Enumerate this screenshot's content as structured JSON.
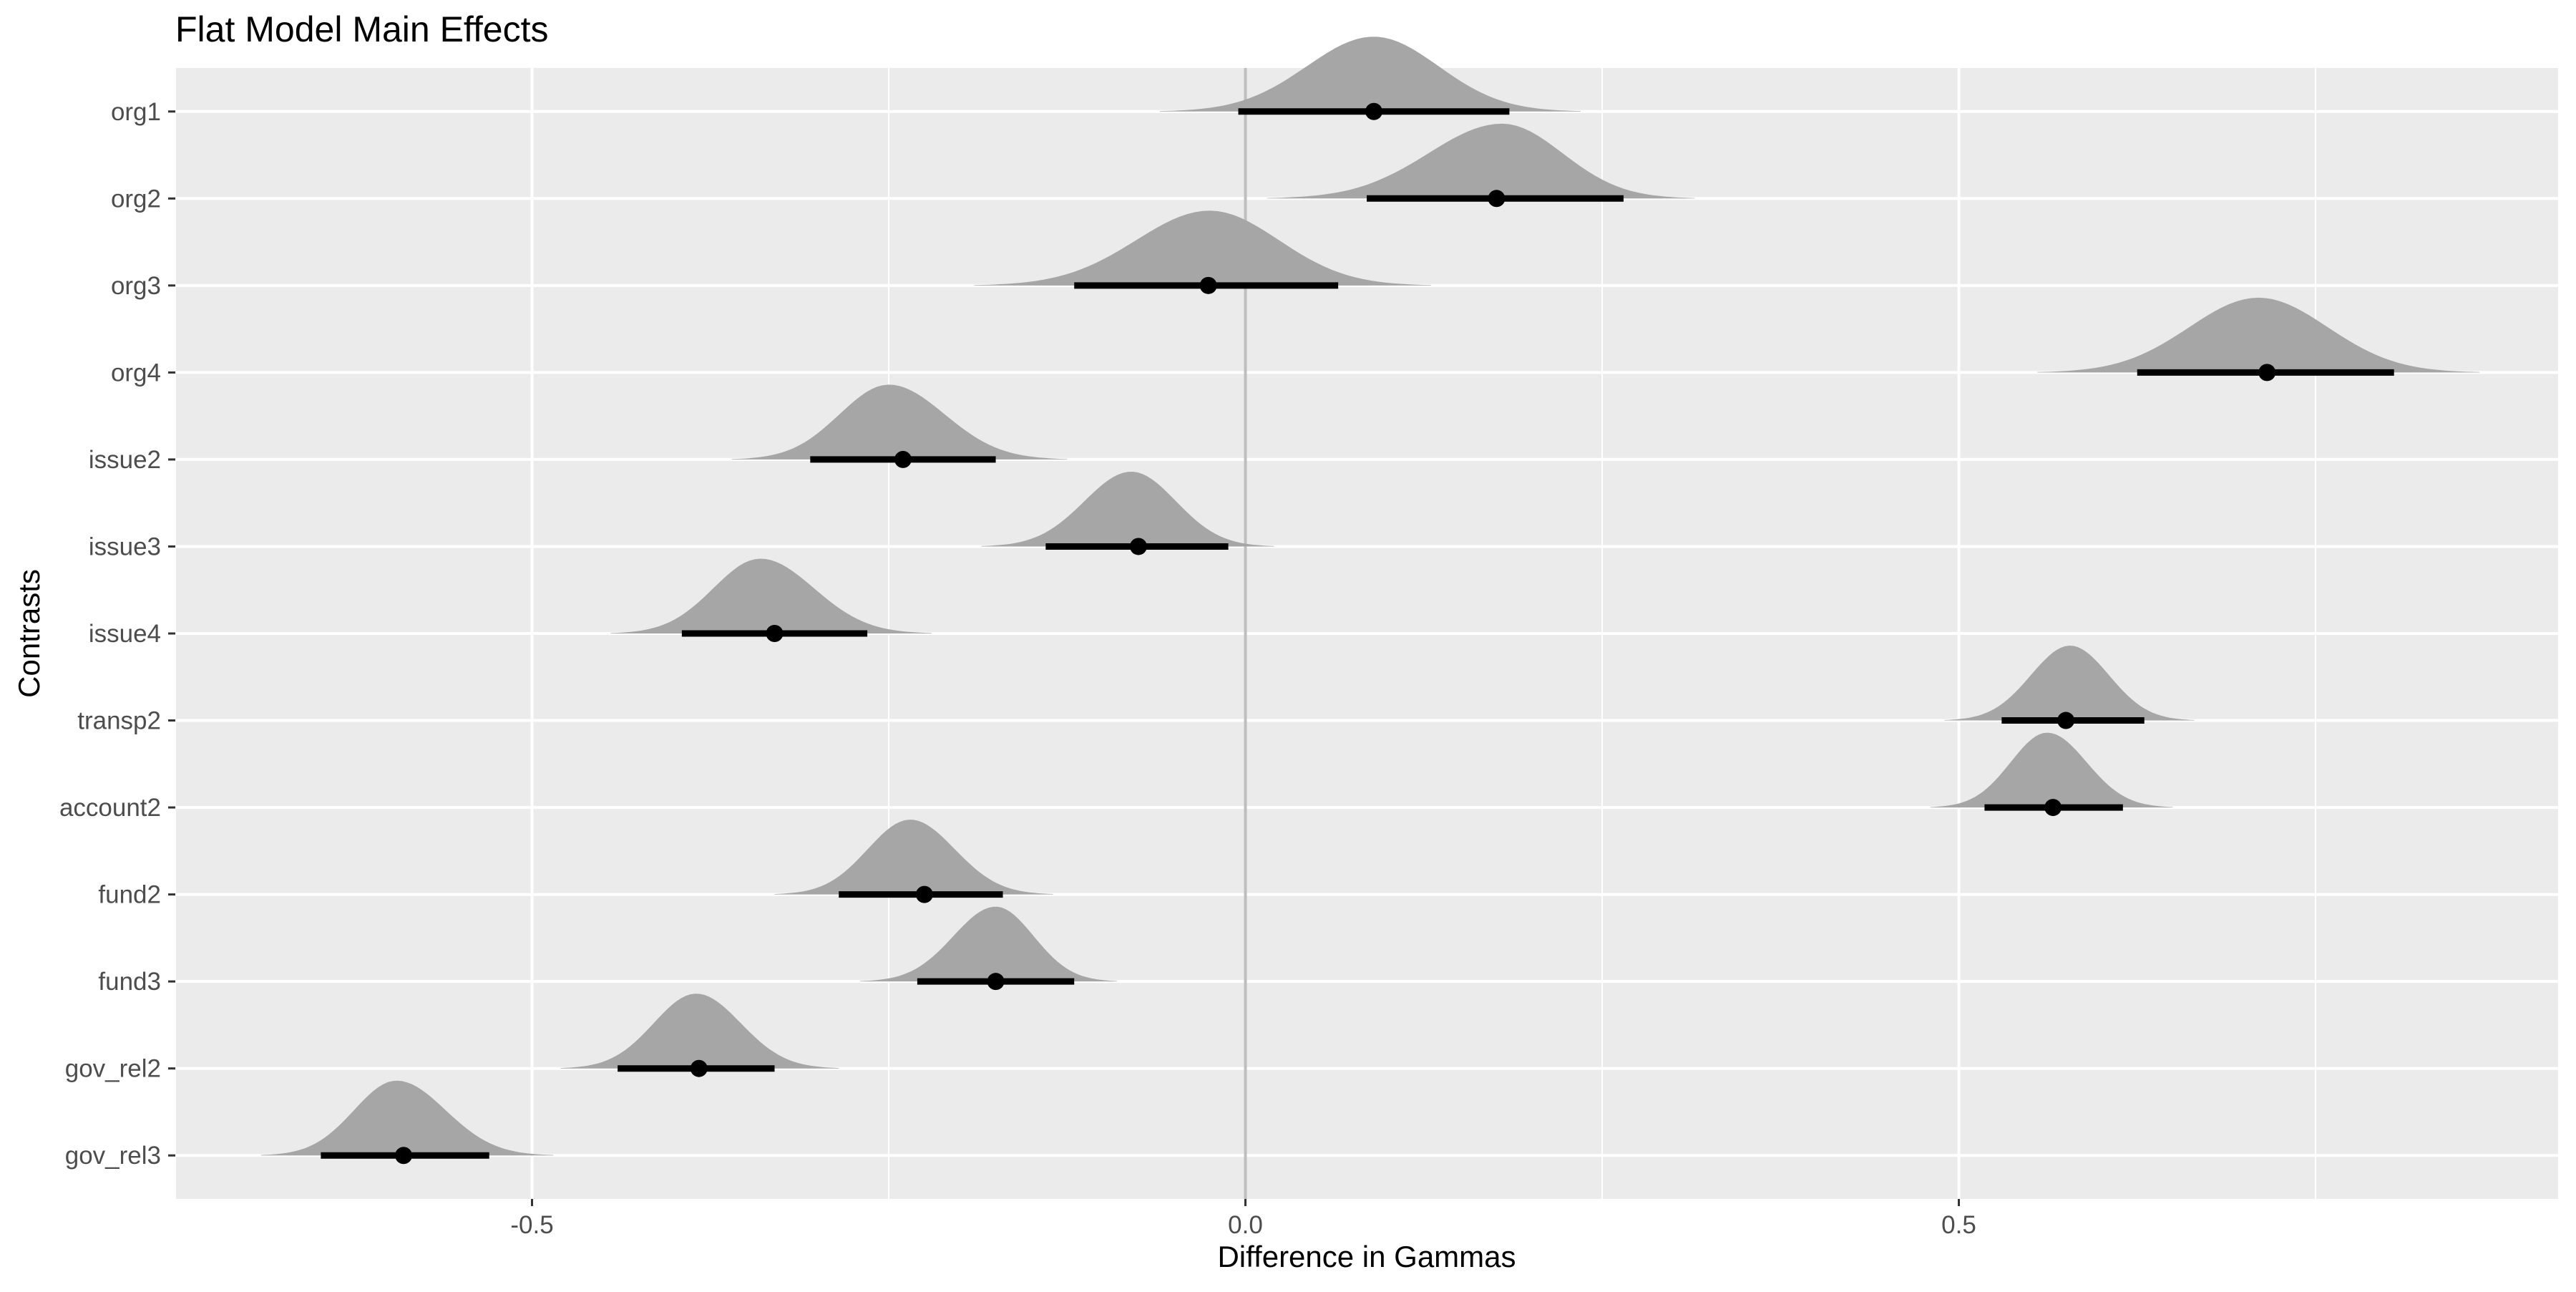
{
  "chart_data": {
    "type": "interval",
    "title": "Flat Model Main Effects",
    "xlabel": "Difference in Gammas",
    "ylabel": "Contrasts",
    "xlim": [
      -0.75,
      0.92
    ],
    "x_ticks": [
      -0.5,
      0.0,
      0.5
    ],
    "x_tick_labels": [
      "-0.5",
      "0.0",
      "0.5"
    ],
    "reference_line": 0,
    "grid": true,
    "categories": [
      "org1",
      "org2",
      "org3",
      "org4",
      "issue2",
      "issue3",
      "issue4",
      "transp2",
      "account2",
      "fund2",
      "fund3",
      "gov_rel2",
      "gov_rel3"
    ],
    "series": [
      {
        "label": "org1",
        "point": 0.09,
        "lower": -0.005,
        "upper": 0.185,
        "dist_min": -0.06,
        "dist_max": 0.235,
        "mode": 0.09
      },
      {
        "label": "org2",
        "point": 0.176,
        "lower": 0.085,
        "upper": 0.265,
        "dist_min": 0.015,
        "dist_max": 0.315,
        "mode": 0.18
      },
      {
        "label": "org3",
        "point": -0.026,
        "lower": -0.12,
        "upper": 0.065,
        "dist_min": -0.19,
        "dist_max": 0.13,
        "mode": -0.025
      },
      {
        "label": "org4",
        "point": 0.716,
        "lower": 0.625,
        "upper": 0.805,
        "dist_min": 0.555,
        "dist_max": 0.865,
        "mode": 0.71
      },
      {
        "label": "issue2",
        "point": -0.24,
        "lower": -0.305,
        "upper": -0.175,
        "dist_min": -0.36,
        "dist_max": -0.125,
        "mode": -0.25
      },
      {
        "label": "issue3",
        "point": -0.075,
        "lower": -0.14,
        "upper": -0.012,
        "dist_min": -0.185,
        "dist_max": 0.02,
        "mode": -0.08
      },
      {
        "label": "issue4",
        "point": -0.33,
        "lower": -0.395,
        "upper": -0.265,
        "dist_min": -0.445,
        "dist_max": -0.22,
        "mode": -0.34
      },
      {
        "label": "transp2",
        "point": 0.575,
        "lower": 0.53,
        "upper": 0.63,
        "dist_min": 0.49,
        "dist_max": 0.665,
        "mode": 0.578
      },
      {
        "label": "account2",
        "point": 0.566,
        "lower": 0.518,
        "upper": 0.615,
        "dist_min": 0.48,
        "dist_max": 0.65,
        "mode": 0.562
      },
      {
        "label": "fund2",
        "point": -0.225,
        "lower": -0.285,
        "upper": -0.17,
        "dist_min": -0.33,
        "dist_max": -0.135,
        "mode": -0.235
      },
      {
        "label": "fund3",
        "point": -0.175,
        "lower": -0.23,
        "upper": -0.12,
        "dist_min": -0.27,
        "dist_max": -0.09,
        "mode": -0.175
      },
      {
        "label": "gov_rel2",
        "point": -0.383,
        "lower": -0.44,
        "upper": -0.33,
        "dist_min": -0.48,
        "dist_max": -0.285,
        "mode": -0.385
      },
      {
        "label": "gov_rel3",
        "point": -0.59,
        "lower": -0.648,
        "upper": -0.53,
        "dist_min": -0.69,
        "dist_max": -0.485,
        "mode": -0.595
      }
    ],
    "colors": {
      "panel": "#ebebeb",
      "grid": "#ffffff",
      "density": "#a6a6a6",
      "interval": "#000000",
      "reference_line": "#bebebe",
      "tick_text": "#4d4d4d",
      "background": "#ffffff"
    }
  }
}
